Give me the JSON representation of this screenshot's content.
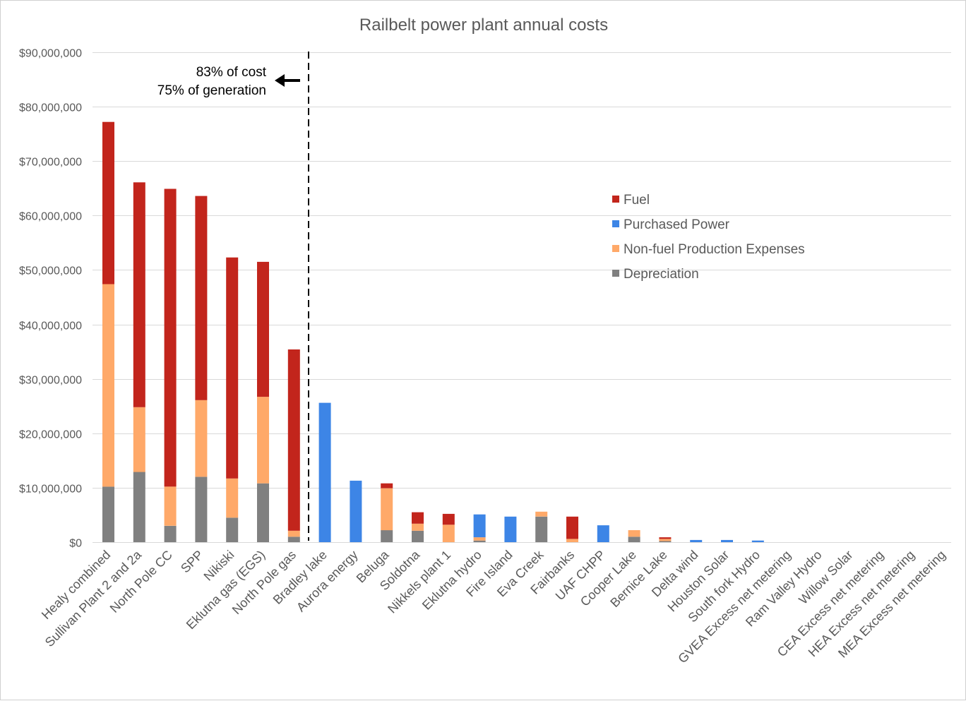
{
  "chart_data": {
    "type": "bar",
    "stacked": true,
    "title": "Railbelt power plant annual costs",
    "xlabel": "",
    "ylabel": "",
    "ylim": [
      0,
      90000000
    ],
    "y_ticks": [
      0,
      10000000,
      20000000,
      30000000,
      40000000,
      50000000,
      60000000,
      70000000,
      80000000,
      90000000
    ],
    "y_tick_labels": [
      "$0",
      "$10,000,000",
      "$20,000,000",
      "$30,000,000",
      "$40,000,000",
      "$50,000,000",
      "$60,000,000",
      "$70,000,000",
      "$80,000,000",
      "$90,000,000"
    ],
    "grid": true,
    "legend_position": "right",
    "categories": [
      "Healy combined",
      "Sullivan Plant 2 and 2a",
      "North Pole CC",
      "SPP",
      "Nikiski",
      "Eklutna gas (EGS)",
      "North Pole gas",
      "Bradley lake",
      "Aurora energy",
      "Beluga",
      "Soldotna",
      "Nikkels plant 1",
      "Eklutna hydro",
      "Fire Island",
      "Eva Creek",
      "Fairbanks",
      "UAF CHPP",
      "Cooper Lake",
      "Bernice Lake",
      "Delta wind",
      "Houston Solar",
      "South fork Hydro",
      "GVEA Excess net metering",
      "Ram Valley Hydro",
      "Willow Solar",
      "CEA Excess net metering",
      "HEA Excess net metering",
      "MEA Excess net metering"
    ],
    "series": [
      {
        "name": "Depreciation",
        "color": "#808080",
        "values": [
          10200000,
          12900000,
          3000000,
          12000000,
          4500000,
          10800000,
          1000000,
          0,
          0,
          2200000,
          2100000,
          0,
          300000,
          0,
          4700000,
          0,
          0,
          1000000,
          200000,
          0,
          0,
          0,
          0,
          0,
          0,
          0,
          0,
          0
        ]
      },
      {
        "name": "Non-fuel Production Expenses",
        "color": "#FFA969",
        "values": [
          37200000,
          11900000,
          7200000,
          14100000,
          7200000,
          15900000,
          1100000,
          0,
          0,
          7700000,
          1300000,
          3200000,
          600000,
          0,
          900000,
          600000,
          0,
          1200000,
          400000,
          0,
          0,
          0,
          0,
          0,
          0,
          0,
          0,
          0
        ]
      },
      {
        "name": "Purchased Power",
        "color": "#3D85E6",
        "values": [
          0,
          0,
          0,
          0,
          0,
          0,
          0,
          25600000,
          11300000,
          0,
          0,
          0,
          4200000,
          4700000,
          0,
          0,
          3100000,
          0,
          0,
          400000,
          400000,
          300000,
          0,
          0,
          0,
          0,
          0,
          0
        ]
      },
      {
        "name": "Fuel",
        "color": "#C2251C",
        "values": [
          29800000,
          41300000,
          54700000,
          37500000,
          40600000,
          24800000,
          33300000,
          0,
          0,
          900000,
          2100000,
          2000000,
          0,
          0,
          0,
          4100000,
          0,
          0,
          300000,
          0,
          0,
          0,
          0,
          0,
          0,
          0,
          0,
          0
        ]
      }
    ],
    "legend_order": [
      "Fuel",
      "Purchased Power",
      "Non-fuel Production Expenses",
      "Depreciation"
    ],
    "annotation": {
      "line1": "83% of cost",
      "line2": "75% of generation",
      "divider_after_category": "North Pole gas"
    }
  }
}
